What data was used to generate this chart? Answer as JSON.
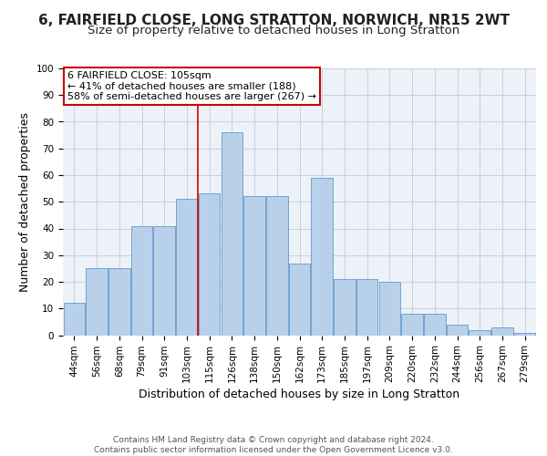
{
  "title": "6, FAIRFIELD CLOSE, LONG STRATTON, NORWICH, NR15 2WT",
  "subtitle": "Size of property relative to detached houses in Long Stratton",
  "xlabel": "Distribution of detached houses by size in Long Stratton",
  "ylabel": "Number of detached properties",
  "categories": [
    "44sqm",
    "56sqm",
    "68sqm",
    "79sqm",
    "91sqm",
    "103sqm",
    "115sqm",
    "126sqm",
    "138sqm",
    "150sqm",
    "162sqm",
    "173sqm",
    "185sqm",
    "197sqm",
    "209sqm",
    "220sqm",
    "232sqm",
    "244sqm",
    "256sqm",
    "267sqm",
    "279sqm"
  ],
  "values": [
    12,
    25,
    25,
    41,
    41,
    51,
    53,
    76,
    52,
    52,
    27,
    59,
    21,
    21,
    20,
    8,
    8,
    4,
    2,
    3,
    1
  ],
  "bar_color": "#b8d0ea",
  "bar_edge_color": "#6699cc",
  "vline_index": 6,
  "property_label": "6 FAIRFIELD CLOSE: 105sqm",
  "annotation_line1": "← 41% of detached houses are smaller (188)",
  "annotation_line2": "58% of semi-detached houses are larger (267) →",
  "annotation_box_color": "#ffffff",
  "annotation_box_edge_color": "#cc0000",
  "vline_color": "#cc0000",
  "grid_color": "#c8d0dc",
  "background_color": "#edf2f8",
  "footer_text": "Contains HM Land Registry data © Crown copyright and database right 2024.\nContains public sector information licensed under the Open Government Licence v3.0.",
  "ylim": [
    0,
    100
  ],
  "title_fontsize": 11,
  "subtitle_fontsize": 9.5,
  "ylabel_fontsize": 9,
  "xlabel_fontsize": 9,
  "tick_fontsize": 7.5,
  "annotation_fontsize": 8,
  "footer_fontsize": 6.5
}
